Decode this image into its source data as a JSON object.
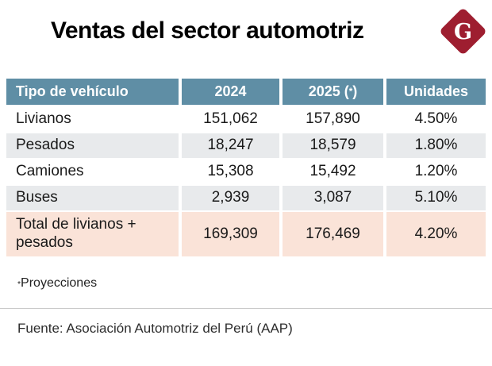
{
  "page": {
    "title": "Ventas del sector automotriz"
  },
  "logo": {
    "letter": "G"
  },
  "table": {
    "headers": {
      "col1": "Tipo de vehículo",
      "col2": "2024",
      "col3_pre": "2025 (",
      "col3_star": "*",
      "col3_post": ")",
      "col4": "Unidades"
    },
    "rows": [
      {
        "label": "Livianos",
        "y2024": "151,062",
        "y2025": "157,890",
        "pct": "4.50%"
      },
      {
        "label": "Pesados",
        "y2024": "18,247",
        "y2025": "18,579",
        "pct": "1.80%"
      },
      {
        "label": "Camiones",
        "y2024": "15,308",
        "y2025": "15,492",
        "pct": "1.20%"
      },
      {
        "label": "Buses",
        "y2024": "2,939",
        "y2025": "3,087",
        "pct": "5.10%"
      },
      {
        "label": "Total de livianos + pesados",
        "y2024": "169,309",
        "y2025": "176,469",
        "pct": "4.20%"
      }
    ]
  },
  "footnote": {
    "star": "*",
    "text": "Proyecciones"
  },
  "source": "Fuente: Asociación Automotriz del Perú (AAP)",
  "colors": {
    "header_bg": "#5f8ea5",
    "alt_row_bg": "#e8eaec",
    "total_row_bg": "#fae3d8",
    "logo_red": "#9e1e30",
    "body_text": "#1a1a1a"
  }
}
